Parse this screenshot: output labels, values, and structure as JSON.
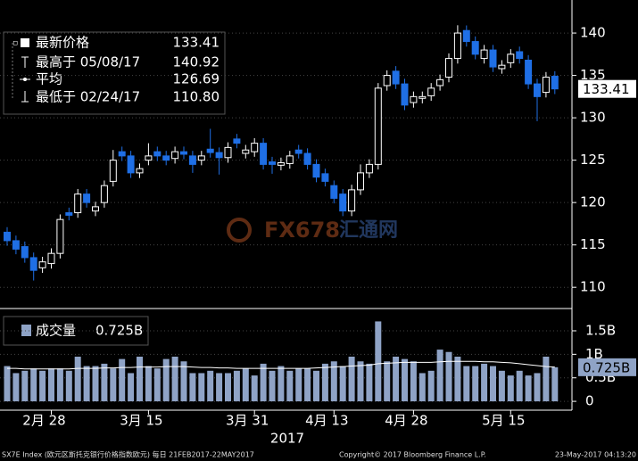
{
  "chart_data": {
    "type": "candlestick",
    "categories": [
      null,
      null,
      null,
      null,
      null,
      "2月 28",
      null,
      null,
      null,
      null,
      null,
      null,
      null,
      null,
      null,
      null,
      "3月 15",
      null,
      null,
      null,
      null,
      null,
      null,
      null,
      null,
      null,
      null,
      null,
      "3月 31",
      null,
      null,
      null,
      null,
      null,
      null,
      null,
      null,
      "4月 13",
      null,
      null,
      null,
      null,
      null,
      null,
      null,
      null,
      "4月 28",
      null,
      null,
      null,
      null,
      null,
      null,
      null,
      null,
      null,
      null,
      "5月 15",
      null,
      null,
      null,
      null,
      null
    ],
    "x_year": "2017",
    "open": [
      116.5,
      115.5,
      114.8,
      113.5,
      112.3,
      112.8,
      114,
      118.8,
      118.8,
      121,
      119,
      120,
      122.5,
      126,
      125.5,
      123.5,
      125,
      126,
      125.5,
      125.2,
      126,
      125.5,
      125,
      126.3,
      125.9,
      125.3,
      127.5,
      125.8,
      126,
      127,
      124.8,
      124.4,
      124.6,
      126.2,
      125.8,
      124.5,
      123.4,
      122,
      121,
      119,
      121.5,
      123.5,
      124.5,
      133.8,
      135.5,
      134,
      131.8,
      132.3,
      132.6,
      133.8,
      134.8,
      137,
      140.3,
      139,
      137,
      138,
      135.8,
      136.5,
      137.8,
      136.8,
      134,
      133,
      134.9
    ],
    "high": [
      117.1,
      116.1,
      115.4,
      114.1,
      113.6,
      114.6,
      118.6,
      119.4,
      121.6,
      121.6,
      120.1,
      122.6,
      126.2,
      126.6,
      126.1,
      124.6,
      127,
      126.6,
      126.1,
      126.6,
      126.6,
      126.1,
      126.1,
      128.7,
      126.5,
      127.1,
      128.1,
      126.8,
      127.6,
      127.6,
      125.4,
      125.3,
      126.1,
      126.8,
      126.4,
      125.1,
      124,
      122.6,
      121.6,
      122.1,
      124.5,
      125.1,
      134.1,
      135.6,
      136.1,
      134.6,
      133.1,
      133.1,
      134.1,
      135.1,
      137.6,
      140.92,
      140.9,
      139.6,
      138.6,
      138.6,
      136.8,
      138.1,
      138.4,
      137.4,
      134.6,
      135.4,
      135.5
    ],
    "low": [
      114.9,
      113.9,
      112.9,
      110.8,
      111.7,
      112.2,
      113.4,
      117.9,
      118.2,
      119.4,
      118.4,
      119.4,
      121.9,
      124.9,
      122.9,
      122.9,
      124.4,
      124.9,
      124.4,
      124.6,
      125.1,
      123.5,
      124.4,
      125.3,
      123.3,
      124.7,
      126.4,
      125.2,
      125.4,
      123.9,
      123.4,
      123.8,
      124,
      125.2,
      123.9,
      122.4,
      121.9,
      119.9,
      118.4,
      118.4,
      120.9,
      122.9,
      123.9,
      133.2,
      133.4,
      130.9,
      131.2,
      131.7,
      132,
      133.2,
      134.2,
      136.4,
      138.4,
      136.9,
      136.4,
      135.4,
      135.2,
      135.9,
      136.4,
      133.4,
      129.6,
      132.4,
      132.8
    ],
    "close": [
      115.5,
      114.5,
      113.5,
      112,
      113,
      114,
      118,
      118.5,
      121,
      120,
      119.5,
      122,
      125,
      125.5,
      123.5,
      124,
      125.5,
      125.5,
      125,
      126,
      125.7,
      124.5,
      125.5,
      125.9,
      125.3,
      126.5,
      127,
      126.2,
      127,
      124.5,
      124.5,
      124.7,
      125.5,
      125.8,
      124.5,
      123,
      122.5,
      120.5,
      119,
      121.5,
      123.5,
      124.5,
      133.5,
      135,
      134,
      131.5,
      132.5,
      132.5,
      133.5,
      134.5,
      137,
      140,
      139,
      137.5,
      138,
      136,
      136.2,
      137.5,
      137,
      134,
      132.5,
      134.8,
      133.41
    ],
    "up_color": "#ffffff",
    "down_color": "#1f6fe5",
    "ylim": [
      107.6,
      143.9
    ],
    "yticks": [
      110,
      115,
      120,
      125,
      130,
      135,
      140
    ],
    "grid": true,
    "legend": [
      {
        "label": "最新价格",
        "value": 133.41
      },
      {
        "label": "最高于 05/08/17",
        "value": 140.92
      },
      {
        "label": "平均",
        "value": 126.69
      },
      {
        "label": "最低于 02/24/17",
        "value": 110.8,
        "value_label": "110.80"
      }
    ],
    "volume": {
      "label": "成交量",
      "color": "#8fa3c6",
      "values": [
        0.75,
        0.6,
        0.65,
        0.7,
        0.65,
        0.7,
        0.7,
        0.65,
        0.95,
        0.75,
        0.75,
        0.8,
        0.7,
        0.9,
        0.6,
        0.95,
        0.75,
        0.7,
        0.9,
        0.95,
        0.85,
        0.6,
        0.6,
        0.65,
        0.6,
        0.6,
        0.65,
        0.7,
        0.55,
        0.8,
        0.65,
        0.75,
        0.65,
        0.7,
        0.7,
        0.65,
        0.8,
        0.85,
        0.75,
        0.95,
        0.85,
        0.8,
        1.7,
        0.85,
        0.95,
        0.9,
        0.85,
        0.6,
        0.65,
        1.1,
        1.05,
        0.95,
        0.75,
        0.75,
        0.8,
        0.75,
        0.65,
        0.55,
        0.65,
        0.55,
        0.6,
        0.95,
        0.725
      ],
      "average": [
        0.7,
        0.7,
        0.69,
        0.69,
        0.69,
        0.69,
        0.69,
        0.69,
        0.7,
        0.7,
        0.7,
        0.71,
        0.71,
        0.72,
        0.72,
        0.73,
        0.73,
        0.73,
        0.74,
        0.74,
        0.74,
        0.73,
        0.72,
        0.72,
        0.71,
        0.71,
        0.7,
        0.7,
        0.7,
        0.7,
        0.7,
        0.7,
        0.7,
        0.7,
        0.7,
        0.71,
        0.72,
        0.73,
        0.74,
        0.75,
        0.76,
        0.77,
        0.8,
        0.81,
        0.82,
        0.83,
        0.83,
        0.83,
        0.83,
        0.84,
        0.85,
        0.85,
        0.85,
        0.85,
        0.84,
        0.84,
        0.83,
        0.82,
        0.8,
        0.78,
        0.76,
        0.74,
        0.73
      ],
      "last_label": "0.725B",
      "ylim": [
        -0.15,
        1.86
      ],
      "yticks": [
        0,
        {
          "value": 0.5,
          "label": "0.5B"
        },
        {
          "value": 1,
          "label": "1B"
        },
        {
          "value": 1.5,
          "label": "1.5B"
        }
      ]
    },
    "watermark": [
      "FX678",
      "汇通网"
    ],
    "footer": {
      "left": "SX7E Index (欧元区斯托克银行价格指数欧元)  每日 21FEB2017-22MAY2017",
      "center": "Copyright© 2017 Bloomberg Finance L.P.",
      "right": "23-May-2017 04:13:20"
    }
  }
}
